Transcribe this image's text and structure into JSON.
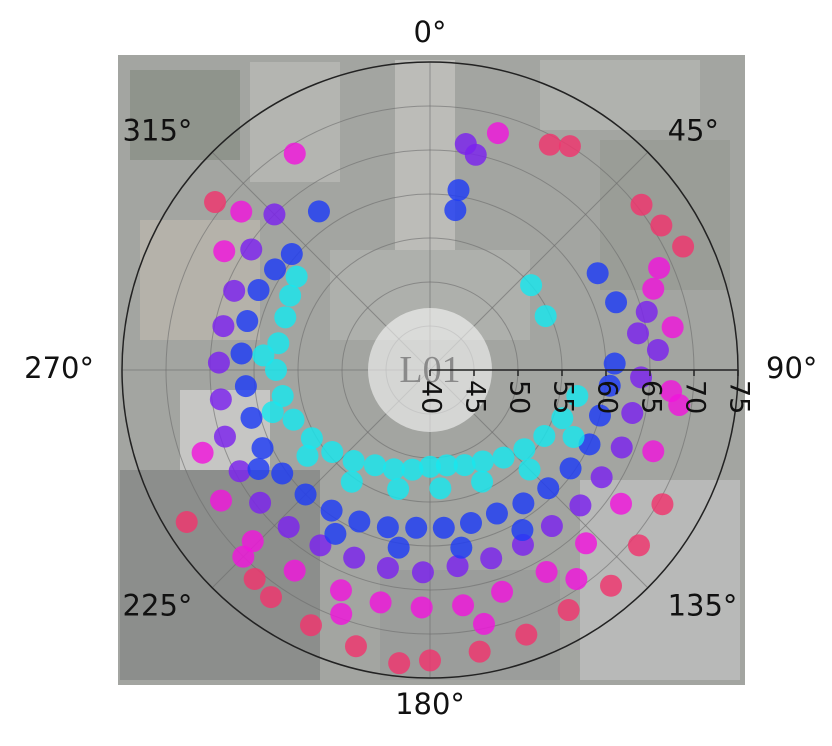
{
  "chart_data": {
    "type": "polar-scatter",
    "annotation": "L01",
    "rlim": [
      40,
      75
    ],
    "rticks": [
      40,
      45,
      50,
      55,
      60,
      65,
      70,
      75
    ],
    "radial_axis_angle": 90,
    "thetaticks": [
      {
        "value": 0,
        "label": "0°"
      },
      {
        "value": 45,
        "label": "45°"
      },
      {
        "value": 90,
        "label": "90°"
      },
      {
        "value": 135,
        "label": "135°"
      },
      {
        "value": 180,
        "label": "180°"
      },
      {
        "value": 225,
        "label": "225°"
      },
      {
        "value": 270,
        "label": "270°"
      },
      {
        "value": 315,
        "label": "315°"
      }
    ],
    "grid": true,
    "series": [
      {
        "color": "#f0356e",
        "theta": [
          28,
          52,
          64,
          58,
          308,
          238,
          150,
          160,
          170,
          180,
          186,
          195,
          205,
          215,
          140,
          130,
          120,
          220,
          32
        ],
        "r": [
          69,
          70.5,
          72,
          71,
          71,
          72.6,
          71.5,
          72,
          72.5,
          73,
          73.5,
          72.5,
          72,
          71.5,
          72,
          71,
          70.5,
          71,
          70
        ]
      },
      {
        "color": "#f015dc",
        "theta": [
          70,
          80,
          95,
          110,
          125,
          138,
          150,
          162,
          172,
          182,
          192,
          202,
          214,
          226,
          238,
          250,
          300,
          310,
          328,
          16,
          66,
          98,
          145,
          168,
          200,
          225
        ],
        "r": [
          67,
          68,
          67.5,
          67,
          66.5,
          66.5,
          66.5,
          66.5,
          67,
          67,
          67,
          67,
          67.5,
          68,
          68,
          67.5,
          67,
          68,
          69,
          68,
          68.5,
          68.6,
          69,
          69.5,
          69.5,
          70
        ]
      },
      {
        "color": "#7b22ee",
        "theta": [
          80,
          92,
          102,
          112,
          122,
          132,
          142,
          152,
          162,
          172,
          182,
          192,
          202,
          212,
          222,
          232,
          242,
          252,
          262,
          272,
          282,
          292,
          304,
          315,
          9,
          12,
          75,
          85
        ],
        "r": [
          64,
          64,
          63.5,
          63.5,
          63,
          63,
          62.5,
          62.5,
          62.5,
          62.5,
          63,
          63,
          63,
          63.5,
          64,
          64.5,
          64.5,
          64.5,
          64,
          64,
          64,
          64,
          64.5,
          65,
          66,
          65,
          65.5,
          66
        ]
      },
      {
        "color": "#1f3cf5",
        "theta": [
          88,
          95,
          105,
          115,
          125,
          135,
          145,
          155,
          165,
          175,
          185,
          195,
          205,
          215,
          225,
          235,
          245,
          255,
          265,
          275,
          285,
          295,
          303,
          310,
          9,
          9,
          60,
          70,
          325,
          150,
          170,
          190,
          210,
          240
        ],
        "r": [
          61,
          60.5,
          60,
          60,
          59.5,
          59,
          58.5,
          58,
          58,
          58,
          58,
          58.5,
          59,
          59.5,
          60,
          60.5,
          61,
          61,
          61,
          61.5,
          61.5,
          61.5,
          61,
          60.5,
          60.7,
          58.4,
          62,
          62.5,
          62,
          61,
          60.5,
          60.5,
          61.5,
          62.5
        ]
      },
      {
        "color": "#19e6ee",
        "theta": [
          100,
          110,
          120,
          130,
          140,
          150,
          160,
          170,
          180,
          190,
          200,
          210,
          220,
          230,
          240,
          250,
          260,
          270,
          280,
          290,
          298,
          305,
          50,
          65,
          115,
          135,
          155,
          175,
          195,
          215,
          235,
          255,
          275
        ],
        "r": [
          57,
          56,
          55,
          54,
          53,
          52,
          51.5,
          51,
          51,
          51.5,
          52,
          52.5,
          53.5,
          54.5,
          55.5,
          56.5,
          57,
          57.5,
          57.5,
          57.5,
          58,
          58.5,
          55,
          54.5,
          58,
          56,
          54,
          53.5,
          54,
          55.5,
          57,
          58.5,
          59
        ]
      }
    ]
  }
}
